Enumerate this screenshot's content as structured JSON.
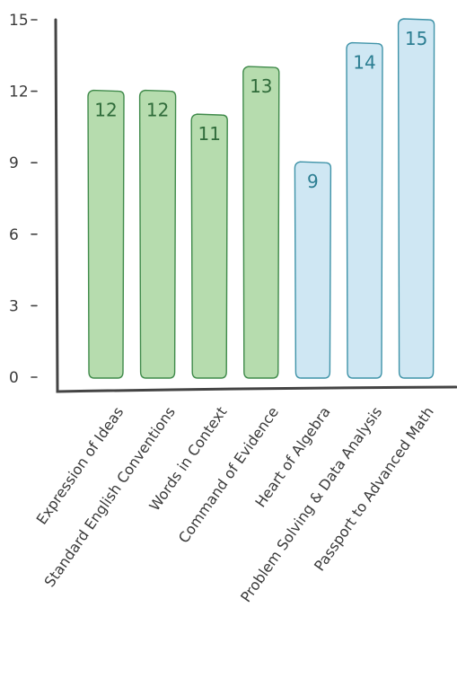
{
  "chart_data": {
    "type": "bar",
    "title": "",
    "xlabel": "",
    "ylabel": "",
    "categories": [
      "Expression of Ideas",
      "Standard English Conventions",
      "Words in Context",
      "Command of Evidence",
      "Heart of Algebra",
      "Problem Solving & Data Analysis",
      "Passport to Advanced Math"
    ],
    "values": [
      12,
      12,
      11,
      13,
      9,
      14,
      15
    ],
    "ylim": [
      0,
      15
    ],
    "yticks": [
      0,
      3,
      6,
      9,
      12,
      15
    ],
    "grid": false,
    "legend": "none",
    "bar_groups": [
      "reading",
      "reading",
      "reading",
      "reading",
      "math",
      "math",
      "math"
    ]
  },
  "colors": {
    "reading_fill": "#b6dcae",
    "reading_stroke": "#3f8a4a",
    "reading_label": "#2f6b3a",
    "math_fill": "#cfe7f3",
    "math_stroke": "#3f93a8",
    "math_label": "#2c7e92",
    "axis": "#444444",
    "text": "#3a3a3a"
  }
}
